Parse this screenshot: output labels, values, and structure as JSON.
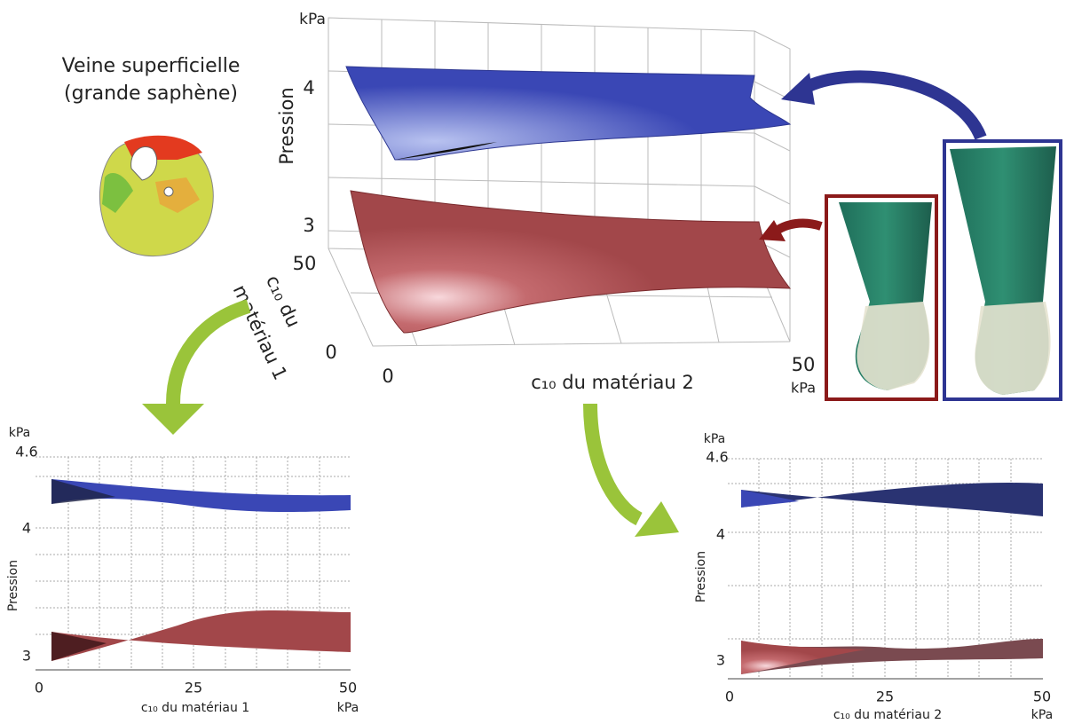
{
  "figure_title": {
    "lines": [
      "Veine superficielle",
      "(grande saphène)"
    ]
  },
  "plot3d": {
    "unit_top": "kPa",
    "y_label": "Pression",
    "y_ticks": [
      "4",
      "3"
    ],
    "depth_ticks": [
      "50",
      "0"
    ],
    "depth_label": [
      "c₁₀ du",
      "matériau 1"
    ],
    "x_ticks": [
      "0",
      "50"
    ],
    "x_unit": "kPa",
    "x_label": "c₁₀ du matériau 2"
  },
  "plot_left": {
    "unit_top": "kPa",
    "y_ticks": [
      "4.6",
      "4",
      "3"
    ],
    "y_label": "Pression",
    "x_ticks": [
      "0",
      "25",
      "50"
    ],
    "x_unit": "kPa",
    "x_label": "c₁₀ du matériau 1"
  },
  "plot_right": {
    "unit_top": "kPa",
    "y_ticks": [
      "4.6",
      "4",
      "3"
    ],
    "y_label": "Pression",
    "x_ticks": [
      "0",
      "25",
      "50"
    ],
    "x_unit": "kPa",
    "x_label": "c₁₀ du matériau 2"
  }
}
